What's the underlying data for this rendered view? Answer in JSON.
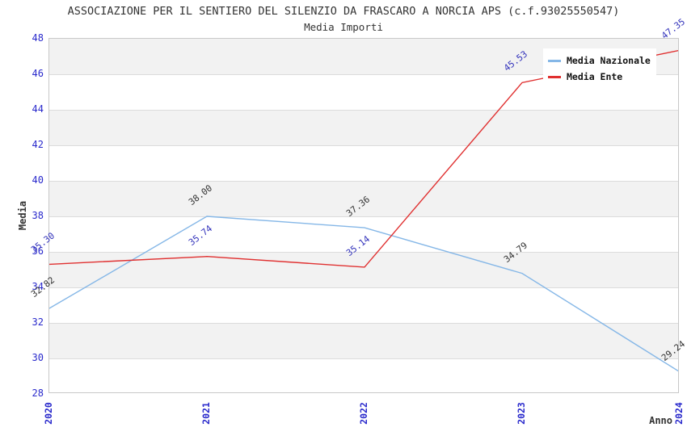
{
  "chart_data": {
    "type": "line",
    "title": "ASSOCIAZIONE PER IL SENTIERO DEL SILENZIO DA FRASCARO A NORCIA APS (c.f.93025550547)",
    "subtitle": "Media Importi",
    "xlabel": "Anno",
    "ylabel": "Media",
    "x": [
      "2020",
      "2021",
      "2022",
      "2023",
      "2024"
    ],
    "ylim": [
      28,
      48
    ],
    "yticks": [
      28,
      30,
      32,
      34,
      36,
      38,
      40,
      42,
      44,
      46,
      48
    ],
    "grid": true,
    "band_fill": "#f2f2f2",
    "band_alt_fill": "#ffffff",
    "gridline_color": "#dcdcdc",
    "axis_tick_color": "#2a2acc",
    "legend_position": "top-right",
    "series": [
      {
        "name": "Media Nazionale",
        "color": "#85b7e7",
        "label_color": "#333333",
        "values": [
          32.82,
          38.0,
          37.36,
          34.79,
          29.24
        ]
      },
      {
        "name": "Media Ente",
        "color": "#e03030",
        "label_color": "#3333bb",
        "values": [
          35.3,
          35.74,
          35.14,
          45.53,
          47.35
        ]
      }
    ]
  }
}
